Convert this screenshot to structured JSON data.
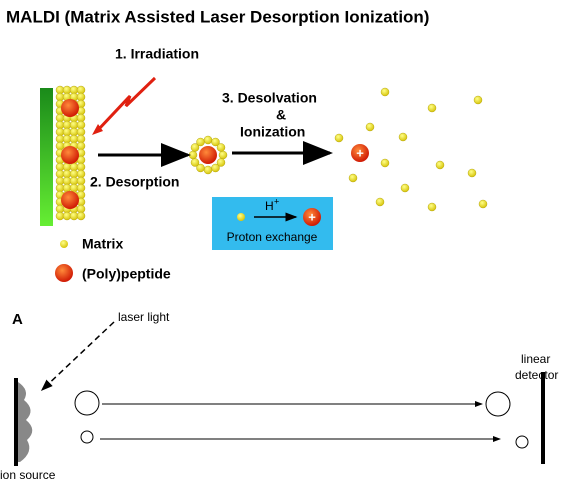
{
  "title": "MALDI (Matrix Assisted Laser Desorption Ionization)",
  "steps": [
    "1. Irradiation",
    "2. Desorption",
    "3. Desolvation",
    "&",
    "Ionization"
  ],
  "proton_exchange": {
    "ion": "H",
    "charge": "+",
    "label": "Proton exchange"
  },
  "ion_charge": "+",
  "legend": [
    "Matrix",
    "(Poly)peptide"
  ],
  "panel": {
    "label": "A",
    "laser": "laser light",
    "detector": [
      "linear",
      "detector"
    ],
    "source": "ion source"
  }
}
